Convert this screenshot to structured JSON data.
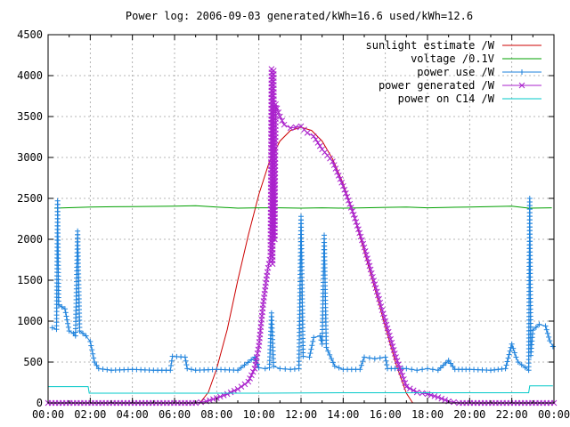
{
  "chart_data": {
    "type": "line",
    "title": "Power log: 2006-09-03 generated/kWh=16.6 used/kWh=12.6",
    "xlabel": "",
    "ylabel": "",
    "xlim": [
      0,
      24
    ],
    "ylim": [
      0,
      4500
    ],
    "x_tick_labels": [
      "00:00",
      "02:00",
      "04:00",
      "06:00",
      "08:00",
      "10:00",
      "12:00",
      "14:00",
      "16:00",
      "18:00",
      "20:00",
      "22:00",
      "00:00"
    ],
    "y_tick_labels": [
      "0",
      "500",
      "1000",
      "1500",
      "2000",
      "2500",
      "3000",
      "3500",
      "4000",
      "4500"
    ],
    "grid": true,
    "legend_position": "top-right",
    "series": [
      {
        "name": "sunlight estimate /W",
        "color": "#cc0000",
        "marker": "none",
        "points": [
          [
            7.2,
            0
          ],
          [
            7.6,
            130
          ],
          [
            8.0,
            420
          ],
          [
            8.5,
            900
          ],
          [
            9.0,
            1500
          ],
          [
            9.5,
            2050
          ],
          [
            10.0,
            2550
          ],
          [
            10.5,
            2950
          ],
          [
            11.0,
            3200
          ],
          [
            11.5,
            3330
          ],
          [
            12.0,
            3370
          ],
          [
            12.5,
            3330
          ],
          [
            13.0,
            3200
          ],
          [
            13.5,
            2980
          ],
          [
            14.0,
            2680
          ],
          [
            14.5,
            2300
          ],
          [
            15.0,
            1850
          ],
          [
            15.5,
            1400
          ],
          [
            16.0,
            930
          ],
          [
            16.5,
            480
          ],
          [
            17.0,
            120
          ],
          [
            17.3,
            0
          ]
        ]
      },
      {
        "name": "voltage /0.1V",
        "color": "#00a000",
        "marker": "none",
        "points": [
          [
            0.3,
            2380
          ],
          [
            2,
            2395
          ],
          [
            4,
            2400
          ],
          [
            6,
            2405
          ],
          [
            7,
            2410
          ],
          [
            8,
            2395
          ],
          [
            9,
            2380
          ],
          [
            10,
            2385
          ],
          [
            11,
            2385
          ],
          [
            12,
            2380
          ],
          [
            13,
            2385
          ],
          [
            14,
            2380
          ],
          [
            15,
            2385
          ],
          [
            16,
            2390
          ],
          [
            17,
            2395
          ],
          [
            18,
            2385
          ],
          [
            19,
            2390
          ],
          [
            20,
            2395
          ],
          [
            21,
            2400
          ],
          [
            22,
            2405
          ],
          [
            22.8,
            2380
          ],
          [
            23.9,
            2385
          ]
        ]
      },
      {
        "name": "power use /W",
        "color": "#1e82dc",
        "marker": "plus",
        "points": [
          [
            0.2,
            920
          ],
          [
            0.4,
            900
          ],
          [
            0.45,
            2470
          ],
          [
            0.5,
            1200
          ],
          [
            0.8,
            1150
          ],
          [
            1.0,
            880
          ],
          [
            1.2,
            850
          ],
          [
            1.3,
            820
          ],
          [
            1.4,
            2100
          ],
          [
            1.5,
            880
          ],
          [
            1.8,
            820
          ],
          [
            2.0,
            750
          ],
          [
            2.2,
            500
          ],
          [
            2.4,
            420
          ],
          [
            3.0,
            400
          ],
          [
            4.0,
            410
          ],
          [
            5.0,
            400
          ],
          [
            5.8,
            400
          ],
          [
            5.9,
            570
          ],
          [
            6.5,
            560
          ],
          [
            6.6,
            420
          ],
          [
            7.0,
            400
          ],
          [
            8.0,
            410
          ],
          [
            9.0,
            400
          ],
          [
            9.8,
            560
          ],
          [
            10.0,
            430
          ],
          [
            10.3,
            420
          ],
          [
            10.5,
            430
          ],
          [
            10.6,
            1100
          ],
          [
            10.7,
            450
          ],
          [
            11.0,
            420
          ],
          [
            11.5,
            410
          ],
          [
            11.9,
            420
          ],
          [
            12.0,
            2280
          ],
          [
            12.1,
            570
          ],
          [
            12.4,
            560
          ],
          [
            12.6,
            800
          ],
          [
            12.9,
            820
          ],
          [
            13.0,
            720
          ],
          [
            13.1,
            2050
          ],
          [
            13.2,
            680
          ],
          [
            13.6,
            450
          ],
          [
            14.0,
            410
          ],
          [
            14.8,
            410
          ],
          [
            15.0,
            560
          ],
          [
            15.5,
            540
          ],
          [
            16.0,
            560
          ],
          [
            16.1,
            420
          ],
          [
            17.0,
            420
          ],
          [
            17.5,
            400
          ],
          [
            18.0,
            420
          ],
          [
            18.5,
            400
          ],
          [
            19.0,
            520
          ],
          [
            19.3,
            410
          ],
          [
            20.0,
            410
          ],
          [
            21.0,
            400
          ],
          [
            21.7,
            420
          ],
          [
            22.0,
            720
          ],
          [
            22.2,
            560
          ],
          [
            22.3,
            500
          ],
          [
            22.8,
            400
          ],
          [
            22.85,
            2500
          ],
          [
            22.9,
            580
          ],
          [
            23.0,
            890
          ],
          [
            23.3,
            960
          ],
          [
            23.6,
            940
          ],
          [
            23.8,
            760
          ],
          [
            23.95,
            690
          ]
        ]
      },
      {
        "name": "power generated /W",
        "color": "#aa22cc",
        "marker": "cross",
        "points": [
          [
            0,
            0
          ],
          [
            7.0,
            0
          ],
          [
            7.5,
            20
          ],
          [
            8.0,
            60
          ],
          [
            8.5,
            110
          ],
          [
            9.0,
            170
          ],
          [
            9.5,
            260
          ],
          [
            9.8,
            420
          ],
          [
            10.0,
            700
          ],
          [
            10.2,
            1200
          ],
          [
            10.4,
            1600
          ],
          [
            10.55,
            1800
          ],
          [
            10.6,
            4080
          ],
          [
            10.65,
            1700
          ],
          [
            10.7,
            4060
          ],
          [
            10.75,
            2000
          ],
          [
            10.8,
            3650
          ],
          [
            11.0,
            3500
          ],
          [
            11.2,
            3400
          ],
          [
            11.5,
            3360
          ],
          [
            12.0,
            3380
          ],
          [
            12.3,
            3300
          ],
          [
            12.6,
            3260
          ],
          [
            13.0,
            3100
          ],
          [
            13.5,
            2950
          ],
          [
            14.0,
            2650
          ],
          [
            14.5,
            2300
          ],
          [
            15.0,
            1900
          ],
          [
            15.5,
            1450
          ],
          [
            16.0,
            1000
          ],
          [
            16.5,
            560
          ],
          [
            17.0,
            200
          ],
          [
            17.5,
            130
          ],
          [
            18.0,
            110
          ],
          [
            18.5,
            70
          ],
          [
            19.0,
            20
          ],
          [
            19.5,
            0
          ],
          [
            24,
            0
          ]
        ]
      },
      {
        "name": "power on C14 /W",
        "color": "#00c8c8",
        "marker": "none",
        "points": [
          [
            0,
            200
          ],
          [
            1.9,
            200
          ],
          [
            1.95,
            120
          ],
          [
            6,
            120
          ],
          [
            10,
            120
          ],
          [
            14,
            125
          ],
          [
            18,
            125
          ],
          [
            22.8,
            125
          ],
          [
            22.85,
            210
          ],
          [
            23.95,
            210
          ]
        ]
      }
    ]
  }
}
